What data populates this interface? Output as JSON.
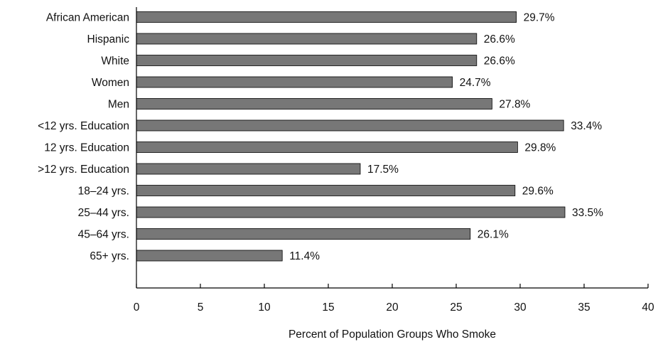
{
  "chart_data": {
    "type": "bar",
    "orientation": "horizontal",
    "categories": [
      "African American",
      "Hispanic",
      "White",
      "Women",
      "Men",
      "<12 yrs. Education",
      "12 yrs. Education",
      ">12 yrs. Education",
      "18–24 yrs.",
      "25–44 yrs.",
      "45–64 yrs.",
      "65+ yrs."
    ],
    "values": [
      29.7,
      26.6,
      26.6,
      24.7,
      27.8,
      33.4,
      29.8,
      17.5,
      29.6,
      33.5,
      26.1,
      11.4
    ],
    "value_labels": [
      "29.7%",
      "26.6%",
      "26.6%",
      "24.7%",
      "27.8%",
      "33.4%",
      "29.8%",
      "17.5%",
      "29.6%",
      "33.5%",
      "26.1%",
      "11.4%"
    ],
    "xlabel": "Percent of Population Groups Who Smoke",
    "ylabel": "",
    "title": "",
    "xlim": [
      0,
      40
    ],
    "xticks": [
      0,
      5,
      10,
      15,
      20,
      25,
      30,
      35,
      40
    ],
    "grid": false,
    "legend": "none",
    "colors": {
      "bar": "#777777",
      "bar_stroke": "#000000",
      "axis": "#000000",
      "text": "#111111"
    }
  }
}
